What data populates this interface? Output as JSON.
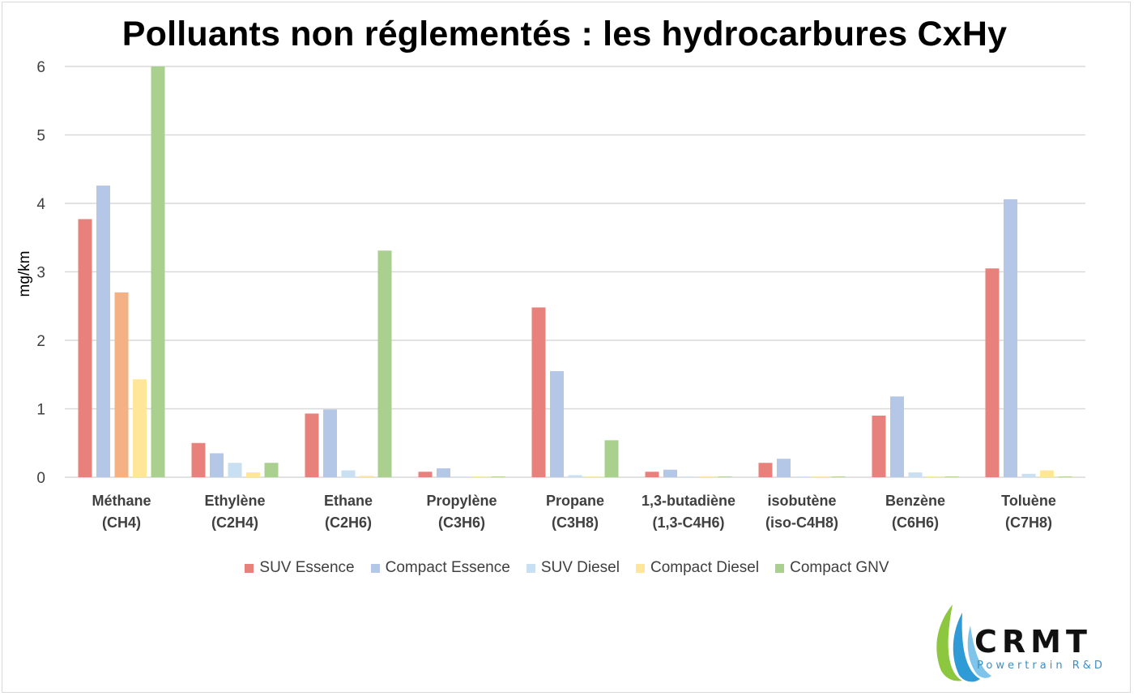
{
  "title": "Polluants non réglementés : les hydrocarbures CxHy",
  "chart_data": {
    "type": "bar",
    "title": "Polluants non réglementés : les hydrocarbures CxHy",
    "ylabel": "mg/km",
    "xlabel": "",
    "ylim": [
      0,
      6
    ],
    "yticks": [
      0,
      1,
      2,
      3,
      4,
      5,
      6
    ],
    "grid": true,
    "legend_position": "bottom",
    "categories": [
      [
        "Méthane",
        "(CH4)"
      ],
      [
        "Ethylène",
        "(C2H4)"
      ],
      [
        "Ethane",
        "(C2H6)"
      ],
      [
        "Propylène",
        "(C3H6)"
      ],
      [
        "Propane",
        "(C3H8)"
      ],
      [
        "1,3-butadiène",
        "(1,3-C4H6)"
      ],
      [
        "isobutène",
        "(iso-C4H8)"
      ],
      [
        "Benzène",
        "(C6H6)"
      ],
      [
        "Toluène",
        "(C7H8)"
      ]
    ],
    "series": [
      {
        "name": "SUV Essence",
        "color": "#e8817c",
        "values": [
          3.77,
          0.5,
          0.93,
          0.08,
          2.48,
          0.08,
          0.21,
          0.9,
          3.05
        ]
      },
      {
        "name": "Compact Essence",
        "color": "#b4c7e7",
        "values": [
          4.26,
          0.35,
          0.99,
          0.13,
          1.55,
          0.11,
          0.27,
          1.18,
          4.06
        ]
      },
      {
        "name": "SUV Diesel",
        "color": "#c9dff2",
        "values": [
          2.7,
          0.21,
          0.1,
          0.01,
          0.03,
          0.01,
          0.01,
          0.07,
          0.05
        ]
      },
      {
        "name": "Compact Diesel",
        "color": "#ffe699",
        "values": [
          1.43,
          0.07,
          0.02,
          0.01,
          0.01,
          0.01,
          0.01,
          0.01,
          0.1
        ]
      },
      {
        "name": "Compact GNV",
        "color": "#a9d08e",
        "values": [
          6.0,
          0.21,
          3.31,
          0.01,
          0.54,
          0.01,
          0.01,
          0.01,
          0.01
        ]
      }
    ],
    "series_color_overrides": [
      {
        "series": 2,
        "category": 0,
        "color": "#f4b183"
      }
    ]
  },
  "logo": {
    "name": "CRMT",
    "subtitle": "Powertrain R&D"
  }
}
